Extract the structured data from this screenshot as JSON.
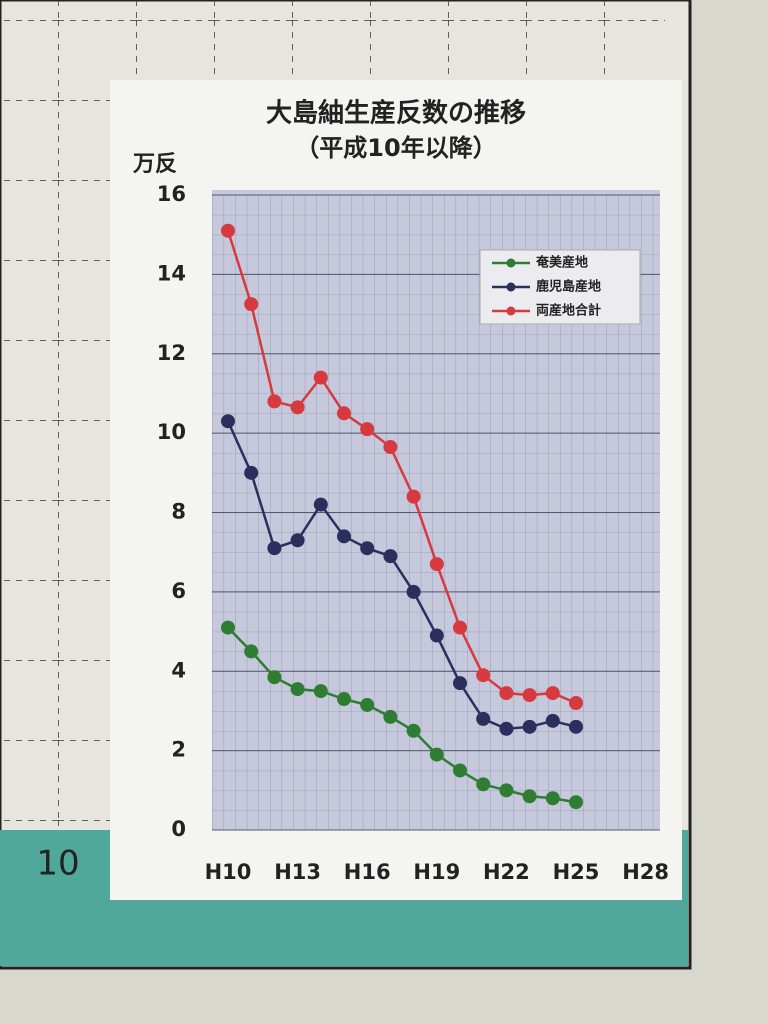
{
  "chart_data": {
    "type": "line",
    "title": "大島紬生産反数の推移",
    "subtitle": "（平成10年以降）",
    "y_label": "万反",
    "categories": [
      "H10",
      null,
      null,
      "H13",
      null,
      null,
      "H16",
      null,
      null,
      "H19",
      null,
      null,
      "H22",
      null,
      null,
      "H25",
      null,
      null,
      "H28"
    ],
    "series": [
      {
        "name": "奄美産地",
        "color": "#2f7d32",
        "values": [
          5.1,
          4.5,
          3.85,
          3.55,
          3.5,
          3.3,
          3.15,
          2.85,
          2.5,
          1.9,
          1.5,
          1.15,
          1.0,
          0.85,
          0.8,
          0.7,
          null,
          null,
          null
        ]
      },
      {
        "name": "鹿児島産地",
        "color": "#2b2f5e",
        "values": [
          10.3,
          9.0,
          7.1,
          7.3,
          8.2,
          7.4,
          7.1,
          6.9,
          6.0,
          4.9,
          3.7,
          2.8,
          2.55,
          2.6,
          2.75,
          2.6,
          null,
          null,
          null
        ]
      },
      {
        "name": "両産地合計",
        "color": "#d63a3e",
        "values": [
          15.1,
          13.25,
          10.8,
          10.65,
          11.4,
          10.5,
          10.1,
          9.65,
          8.4,
          6.7,
          5.1,
          3.9,
          3.45,
          3.4,
          3.45,
          3.2,
          null,
          null,
          null
        ]
      }
    ],
    "ylim": [
      0,
      16
    ],
    "yticks": [
      0,
      2,
      4,
      6,
      8,
      10,
      12,
      14,
      16
    ],
    "grid": true,
    "legend": "upper right"
  },
  "background": {
    "axis_label": "10"
  }
}
